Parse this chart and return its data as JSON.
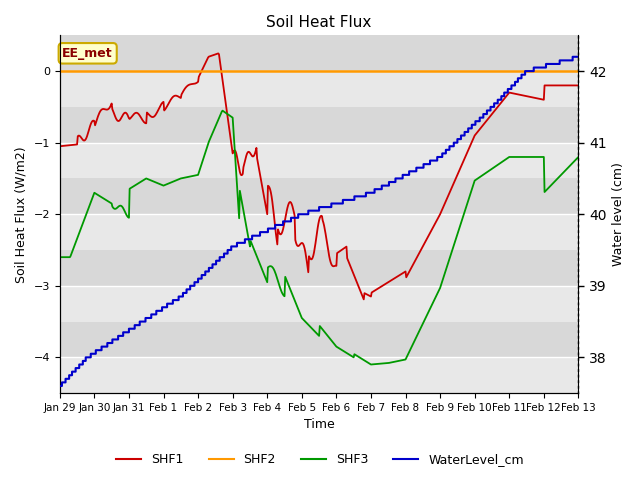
{
  "title": "Soil Heat Flux",
  "ylabel_left": "Soil Heat Flux (W/m2)",
  "ylabel_right": "Water level (cm)",
  "xlabel": "Time",
  "ylim_left": [
    -4.5,
    0.5
  ],
  "ylim_right": [
    37.5,
    42.5
  ],
  "bg_color": "#e8e8e8",
  "bg_color2": "#d8d8d8",
  "annotation_text": "EE_met",
  "annotation_color": "#8B0000",
  "annotation_bg": "#ffffcc",
  "annotation_border": "#ccaa00",
  "x_tick_labels": [
    "Jan 29",
    "Jan 30",
    "Jan 31",
    "Feb 1",
    "Feb 2",
    "Feb 3",
    "Feb 4",
    "Feb 5",
    "Feb 6",
    "Feb 7",
    "Feb 8",
    "Feb 9",
    "Feb 10",
    "Feb 11",
    "Feb 12",
    "Feb 13"
  ],
  "shf1_color": "#cc0000",
  "shf2_color": "#ff9900",
  "shf3_color": "#009900",
  "water_color": "#0000cc",
  "legend_items": [
    "SHF1",
    "SHF2",
    "SHF3",
    "WaterLevel_cm"
  ]
}
